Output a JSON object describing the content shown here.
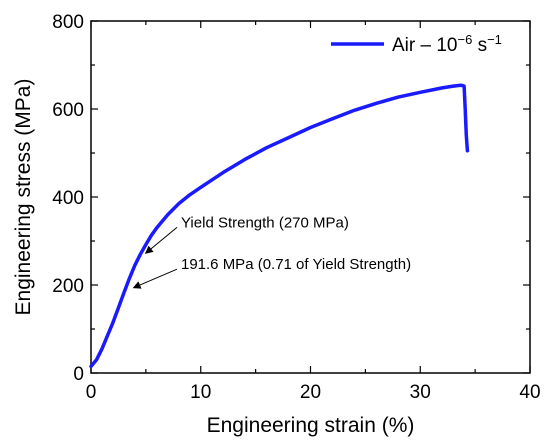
{
  "chart_data": {
    "type": "line",
    "title": "",
    "xlabel": "Engineering strain (%)",
    "ylabel": "Engineering stress (MPa)",
    "xlim": [
      0,
      40
    ],
    "ylim": [
      0,
      800
    ],
    "xticks": [
      0,
      10,
      20,
      30,
      40
    ],
    "yticks": [
      0,
      200,
      400,
      600,
      800
    ],
    "xtick_labels": [
      "0",
      "10",
      "20",
      "30",
      "40"
    ],
    "ytick_labels": [
      "0",
      "200",
      "400",
      "600",
      "800"
    ],
    "grid": false,
    "legend_position": "top-right",
    "series": [
      {
        "name": "Air – 10",
        "name_superscript": "−6",
        "name_unit": " s",
        "name_unit_superscript": "−1",
        "color": "#1a1aff",
        "x": [
          0,
          0.5,
          1,
          1.5,
          2,
          2.5,
          3,
          3.5,
          4,
          4.5,
          5,
          5.5,
          6,
          7,
          8,
          9,
          10,
          12,
          14,
          16,
          18,
          20,
          22,
          24,
          26,
          28,
          30,
          32,
          33,
          33.7,
          34.0,
          34.1,
          34.2,
          34.3
        ],
        "y": [
          15,
          30,
          55,
          85,
          115,
          148,
          182,
          215,
          245,
          270,
          292,
          313,
          330,
          360,
          385,
          405,
          422,
          455,
          485,
          512,
          535,
          558,
          578,
          597,
          613,
          627,
          638,
          648,
          652,
          654,
          652,
          600,
          540,
          505
        ]
      }
    ],
    "annotations": [
      {
        "text": "Yield Strength (270 MPa)",
        "x": 4.8,
        "y": 270,
        "text_x": 8.2,
        "text_y": 340
      },
      {
        "text": "191.6 MPa (0.71 of Yield Strength)",
        "x": 3.7,
        "y": 191.6,
        "text_x": 8.2,
        "text_y": 245
      }
    ]
  }
}
